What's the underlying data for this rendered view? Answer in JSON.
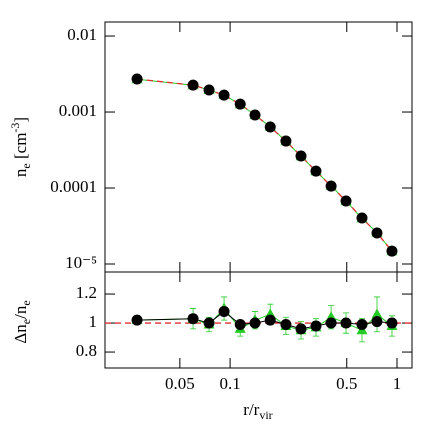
{
  "chart_data": [
    {
      "type": "line",
      "xscale": "log",
      "yscale": "log",
      "xlim": [
        0.0178,
        1.23
      ],
      "ylim": [
        7.85e-06,
        0.0153
      ],
      "yticks": [
        0.01,
        0.001,
        0.0001,
        {
          "value": 1e-05,
          "label": "10⁻⁵"
        }
      ],
      "ylabel": [
        "n",
        "e",
        " [cm",
        "-3",
        "]"
      ],
      "x": [
        0.0277,
        0.06,
        0.0748,
        0.092,
        0.115,
        0.141,
        0.174,
        0.216,
        0.266,
        0.327,
        0.403,
        0.495,
        0.617,
        0.759,
        0.933
      ],
      "model_color": "#e03030",
      "series": [
        {
          "color": "#22cc22",
          "marker": "triangle",
          "values": [
            0.0027,
            0.00225,
            0.00195,
            0.00168,
            0.00126,
            0.000915,
            0.00064,
            0.000413,
            0.000262,
            0.000166,
            0.000107,
            6.72e-05,
            3.98e-05,
            2.58e-05,
            1.47e-05
          ]
        },
        {
          "color": "#000000",
          "marker": "circle",
          "values": [
            0.00272,
            0.00226,
            0.00195,
            0.00167,
            0.00127,
            0.000913,
            0.000635,
            0.000415,
            0.000264,
            0.000167,
            0.000106,
            6.75e-05,
            4.03e-05,
            2.56e-05,
            1.48e-05
          ]
        }
      ]
    },
    {
      "type": "errorbar",
      "xscale": "log",
      "xlim": [
        0.0178,
        1.23
      ],
      "ylim": [
        0.69,
        1.352
      ],
      "xticks": [
        0.05,
        0.1,
        0.5,
        1
      ],
      "yticks": [
        0.8,
        1,
        1.2
      ],
      "xlabel": [
        "r/r",
        "vir"
      ],
      "ylabel": [
        "Δn",
        "e",
        "/n",
        "e"
      ],
      "hline": 1,
      "hline_color": "#e03030",
      "x": [
        0.0277,
        0.06,
        0.0748,
        0.092,
        0.115,
        0.141,
        0.174,
        0.216,
        0.266,
        0.327,
        0.403,
        0.495,
        0.617,
        0.759,
        0.933
      ],
      "series": [
        {
          "color": "#22cc22",
          "marker": "triangle",
          "values": [
            1.02,
            1.03,
            0.99,
            1.1,
            0.96,
            1.02,
            1.06,
            0.98,
            0.95,
            0.97,
            1.04,
            1.0,
            0.95,
            1.06,
            0.98
          ],
          "errors": [
            0.03,
            0.07,
            0.05,
            0.08,
            0.05,
            0.06,
            0.07,
            0.06,
            0.06,
            0.06,
            0.08,
            0.07,
            0.08,
            0.12,
            0.07
          ]
        },
        {
          "color": "#000000",
          "marker": "circle",
          "values": [
            1.02,
            1.03,
            1.0,
            1.08,
            0.99,
            1.0,
            1.02,
            0.99,
            0.96,
            0.98,
            1.0,
            1.0,
            0.99,
            1.01,
            1.0
          ],
          "errors": [
            0.025,
            0.03,
            0.025,
            0.03,
            0.025,
            0.025,
            0.025,
            0.025,
            0.025,
            0.025,
            0.025,
            0.03,
            0.03,
            0.03,
            0.03
          ]
        }
      ]
    }
  ]
}
